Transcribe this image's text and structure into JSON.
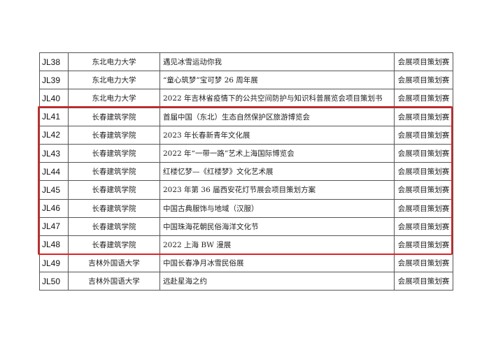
{
  "rows": [
    {
      "id": "JL38",
      "school": "东北电力大学",
      "title": "遇见冰雪运动你我",
      "category": "会展项目策划赛"
    },
    {
      "id": "JL39",
      "school": "东北电力大学",
      "title": "“童心筑梦”宝可梦 26 周年展",
      "category": "会展项目策划赛"
    },
    {
      "id": "JL40",
      "school": "东北电力大学",
      "title": "2022 年吉林省疫情下的公共空间防护与知识科普展览会项目策划书",
      "category": "会展项目策划赛"
    },
    {
      "id": "JL41",
      "school": "长春建筑学院",
      "title": "首届中国（东北）生态自然保护区旅游博览会",
      "category": "会展项目策划赛"
    },
    {
      "id": "JL42",
      "school": "长春建筑学院",
      "title": "2023 年长春新青年文化展",
      "category": "会展项目策划赛"
    },
    {
      "id": "JL43",
      "school": "长春建筑学院",
      "title": "2022 年“一带一路”艺术上海国际博览会",
      "category": "会展项目策划赛"
    },
    {
      "id": "JL44",
      "school": "长春建筑学院",
      "title": "红楼忆梦—《红楼梦》文化艺术展",
      "category": "会展项目策划赛"
    },
    {
      "id": "JL45",
      "school": "长春建筑学院",
      "title": "2023 年第 36 届西安花灯节展会项目策划方案",
      "category": "会展项目策划赛"
    },
    {
      "id": "JL46",
      "school": "长春建筑学院",
      "title": "中国古典服饰与地域（汉服）",
      "category": "会展项目策划赛"
    },
    {
      "id": "JL47",
      "school": "长春建筑学院",
      "title": "中国珠海花朝民俗海洋文化节",
      "category": "会展项目策划赛"
    },
    {
      "id": "JL48",
      "school": "长春建筑学院",
      "title": "2022 上海 BW 漫展",
      "category": "会展项目策划赛"
    },
    {
      "id": "JL49",
      "school": "吉林外国语大学",
      "title": "中国长春净月冰雪民俗展",
      "category": "会展项目策划赛"
    },
    {
      "id": "JL50",
      "school": "吉林外国语大学",
      "title": "远赴星海之约",
      "category": "会展项目策划赛"
    }
  ],
  "highlight": {
    "color": "#e02020",
    "from_id": "JL41",
    "to_id": "JL48"
  }
}
